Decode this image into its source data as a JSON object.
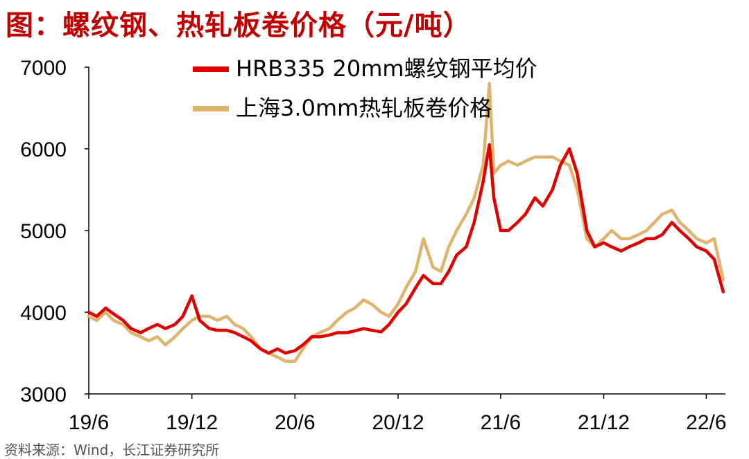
{
  "title": "图：螺纹钢、热轧板卷价格（元/吨）",
  "source": "资料来源：Wind，长江证券研究所",
  "colors": {
    "rebar": "#e00000",
    "hrc": "#dfb46e",
    "axis": "#000000"
  },
  "chart_data": {
    "type": "line",
    "title": "图：螺纹钢、热轧板卷价格（元/吨）",
    "xlabel": "",
    "ylabel": "",
    "x_ticks": [
      "19/6",
      "19/12",
      "20/6",
      "20/12",
      "21/6",
      "21/12",
      "22/6"
    ],
    "y_ticks": [
      "3000",
      "4000",
      "5000",
      "6000",
      "7000"
    ],
    "ylim": [
      3000,
      7000
    ],
    "xlim": [
      "2019-06-01",
      "2022-07-05"
    ],
    "grid": false,
    "legend": "top",
    "x": [
      "2019-06-01",
      "2019-06-15",
      "2019-07-01",
      "2019-07-15",
      "2019-08-01",
      "2019-08-15",
      "2019-09-01",
      "2019-09-15",
      "2019-10-01",
      "2019-10-15",
      "2019-11-01",
      "2019-11-15",
      "2019-12-01",
      "2019-12-15",
      "2020-01-01",
      "2020-01-15",
      "2020-02-01",
      "2020-02-15",
      "2020-03-01",
      "2020-03-15",
      "2020-04-01",
      "2020-04-15",
      "2020-05-01",
      "2020-05-15",
      "2020-06-01",
      "2020-06-15",
      "2020-07-01",
      "2020-07-15",
      "2020-08-01",
      "2020-08-15",
      "2020-09-01",
      "2020-09-15",
      "2020-10-01",
      "2020-10-15",
      "2020-11-01",
      "2020-11-15",
      "2020-12-01",
      "2020-12-15",
      "2021-01-01",
      "2021-01-15",
      "2021-02-01",
      "2021-02-15",
      "2021-03-01",
      "2021-03-15",
      "2021-04-01",
      "2021-04-15",
      "2021-05-01",
      "2021-05-12",
      "2021-05-20",
      "2021-06-01",
      "2021-06-15",
      "2021-07-01",
      "2021-07-15",
      "2021-08-01",
      "2021-08-15",
      "2021-09-01",
      "2021-09-15",
      "2021-10-01",
      "2021-10-15",
      "2021-11-01",
      "2021-11-15",
      "2021-12-01",
      "2021-12-15",
      "2022-01-01",
      "2022-01-15",
      "2022-02-01",
      "2022-02-15",
      "2022-03-01",
      "2022-03-15",
      "2022-04-01",
      "2022-04-15",
      "2022-05-01",
      "2022-05-15",
      "2022-06-01",
      "2022-06-15",
      "2022-07-01"
    ],
    "series": [
      {
        "name": "HRB335 20mm螺纹钢平均价",
        "color": "#e00000",
        "values": [
          4000,
          3950,
          4050,
          3980,
          3900,
          3800,
          3750,
          3800,
          3850,
          3800,
          3850,
          3950,
          4200,
          3900,
          3800,
          3780,
          3780,
          3750,
          3700,
          3650,
          3550,
          3500,
          3550,
          3500,
          3530,
          3600,
          3700,
          3700,
          3720,
          3750,
          3750,
          3770,
          3800,
          3780,
          3760,
          3850,
          4000,
          4100,
          4300,
          4450,
          4350,
          4350,
          4500,
          4700,
          4800,
          5100,
          5600,
          6050,
          5400,
          5000,
          5000,
          5100,
          5200,
          5400,
          5300,
          5500,
          5800,
          6000,
          5700,
          5000,
          4800,
          4850,
          4800,
          4750,
          4800,
          4850,
          4900,
          4900,
          4950,
          5100,
          5000,
          4900,
          4800,
          4750,
          4650,
          4250
        ]
      },
      {
        "name": "上海3.0mm热轧板卷价格",
        "color": "#dfb46e",
        "values": [
          3950,
          3900,
          4000,
          3900,
          3850,
          3750,
          3700,
          3650,
          3700,
          3600,
          3700,
          3800,
          3900,
          3950,
          3950,
          3900,
          3950,
          3850,
          3800,
          3700,
          3550,
          3500,
          3450,
          3400,
          3400,
          3550,
          3700,
          3750,
          3800,
          3900,
          4000,
          4050,
          4150,
          4100,
          4000,
          3950,
          4100,
          4300,
          4500,
          4900,
          4550,
          4500,
          4800,
          5000,
          5200,
          5400,
          5800,
          6800,
          5700,
          5800,
          5850,
          5800,
          5850,
          5900,
          5900,
          5900,
          5850,
          5800,
          5500,
          4900,
          4800,
          4900,
          5000,
          4900,
          4900,
          4950,
          5000,
          5100,
          5200,
          5250,
          5100,
          5000,
          4900,
          4850,
          4900,
          4400
        ]
      }
    ]
  }
}
